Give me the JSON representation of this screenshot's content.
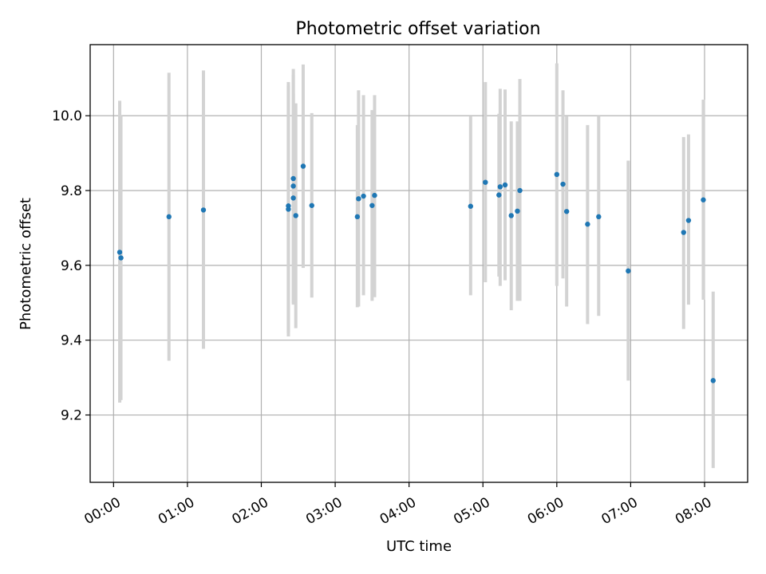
{
  "chart_data": {
    "type": "scatter",
    "title": "Photometric offset variation",
    "xlabel": "UTC time",
    "ylabel": "Photometric offset",
    "x_is_time": true,
    "xlim": [
      "-00:19",
      "08:35"
    ],
    "ylim": [
      9.02,
      10.19
    ],
    "x_ticks": [
      "00:00",
      "01:00",
      "02:00",
      "03:00",
      "04:00",
      "05:00",
      "06:00",
      "07:00",
      "08:00"
    ],
    "y_ticks": [
      "9.2",
      "9.4",
      "9.6",
      "9.8",
      "10.0"
    ],
    "grid": true,
    "legend": "none",
    "colors": {
      "point": "#1f77b4",
      "errorbar": "#d3d3d3",
      "grid": "#b0b0b0"
    },
    "series": [
      {
        "points": [
          {
            "x": "00:05",
            "y": 9.635,
            "lo": 9.233,
            "hi": 10.04
          },
          {
            "x": "00:06",
            "y": 9.62,
            "lo": 9.24,
            "hi": 10.0
          },
          {
            "x": "00:45",
            "y": 9.73,
            "lo": 9.345,
            "hi": 10.115
          },
          {
            "x": "01:13",
            "y": 9.748,
            "lo": 9.377,
            "hi": 10.121
          },
          {
            "x": "02:22",
            "y": 9.759,
            "lo": 9.41,
            "hi": 10.09
          },
          {
            "x": "02:22",
            "y": 9.75,
            "lo": 9.42,
            "hi": 10.08
          },
          {
            "x": "02:26",
            "y": 9.812,
            "lo": 9.495,
            "hi": 10.125
          },
          {
            "x": "02:26",
            "y": 9.832,
            "lo": 9.5,
            "hi": 10.11
          },
          {
            "x": "02:26",
            "y": 9.78,
            "lo": 9.5,
            "hi": 10.06
          },
          {
            "x": "02:28",
            "y": 9.733,
            "lo": 9.432,
            "hi": 10.033
          },
          {
            "x": "02:34",
            "y": 9.865,
            "lo": 9.593,
            "hi": 10.137
          },
          {
            "x": "02:41",
            "y": 9.76,
            "lo": 9.514,
            "hi": 10.007
          },
          {
            "x": "03:18",
            "y": 9.73,
            "lo": 9.488,
            "hi": 9.975
          },
          {
            "x": "03:19",
            "y": 9.778,
            "lo": 9.49,
            "hi": 10.068
          },
          {
            "x": "03:23",
            "y": 9.785,
            "lo": 9.52,
            "hi": 10.055
          },
          {
            "x": "03:30",
            "y": 9.76,
            "lo": 9.505,
            "hi": 10.015
          },
          {
            "x": "03:32",
            "y": 9.787,
            "lo": 9.515,
            "hi": 10.055
          },
          {
            "x": "04:50",
            "y": 9.758,
            "lo": 9.52,
            "hi": 9.998
          },
          {
            "x": "05:02",
            "y": 9.822,
            "lo": 9.555,
            "hi": 10.09
          },
          {
            "x": "05:13",
            "y": 9.788,
            "lo": 9.57,
            "hi": 10.005
          },
          {
            "x": "05:14",
            "y": 9.81,
            "lo": 9.545,
            "hi": 10.072
          },
          {
            "x": "05:18",
            "y": 9.815,
            "lo": 9.56,
            "hi": 10.07
          },
          {
            "x": "05:23",
            "y": 9.733,
            "lo": 9.48,
            "hi": 9.985
          },
          {
            "x": "05:28",
            "y": 9.745,
            "lo": 9.505,
            "hi": 9.985
          },
          {
            "x": "05:30",
            "y": 9.8,
            "lo": 9.505,
            "hi": 10.098
          },
          {
            "x": "06:00",
            "y": 9.843,
            "lo": 9.545,
            "hi": 10.14
          },
          {
            "x": "06:05",
            "y": 9.817,
            "lo": 9.565,
            "hi": 10.068
          },
          {
            "x": "06:08",
            "y": 9.744,
            "lo": 9.49,
            "hi": 9.998
          },
          {
            "x": "06:25",
            "y": 9.71,
            "lo": 9.443,
            "hi": 9.975
          },
          {
            "x": "06:34",
            "y": 9.73,
            "lo": 9.465,
            "hi": 10.0
          },
          {
            "x": "06:58",
            "y": 9.585,
            "lo": 9.292,
            "hi": 9.88
          },
          {
            "x": "07:43",
            "y": 9.688,
            "lo": 9.43,
            "hi": 9.943
          },
          {
            "x": "07:47",
            "y": 9.72,
            "lo": 9.495,
            "hi": 9.95
          },
          {
            "x": "07:59",
            "y": 9.775,
            "lo": 9.508,
            "hi": 10.043
          },
          {
            "x": "08:07",
            "y": 9.292,
            "lo": 9.058,
            "hi": 9.53
          }
        ]
      }
    ]
  }
}
